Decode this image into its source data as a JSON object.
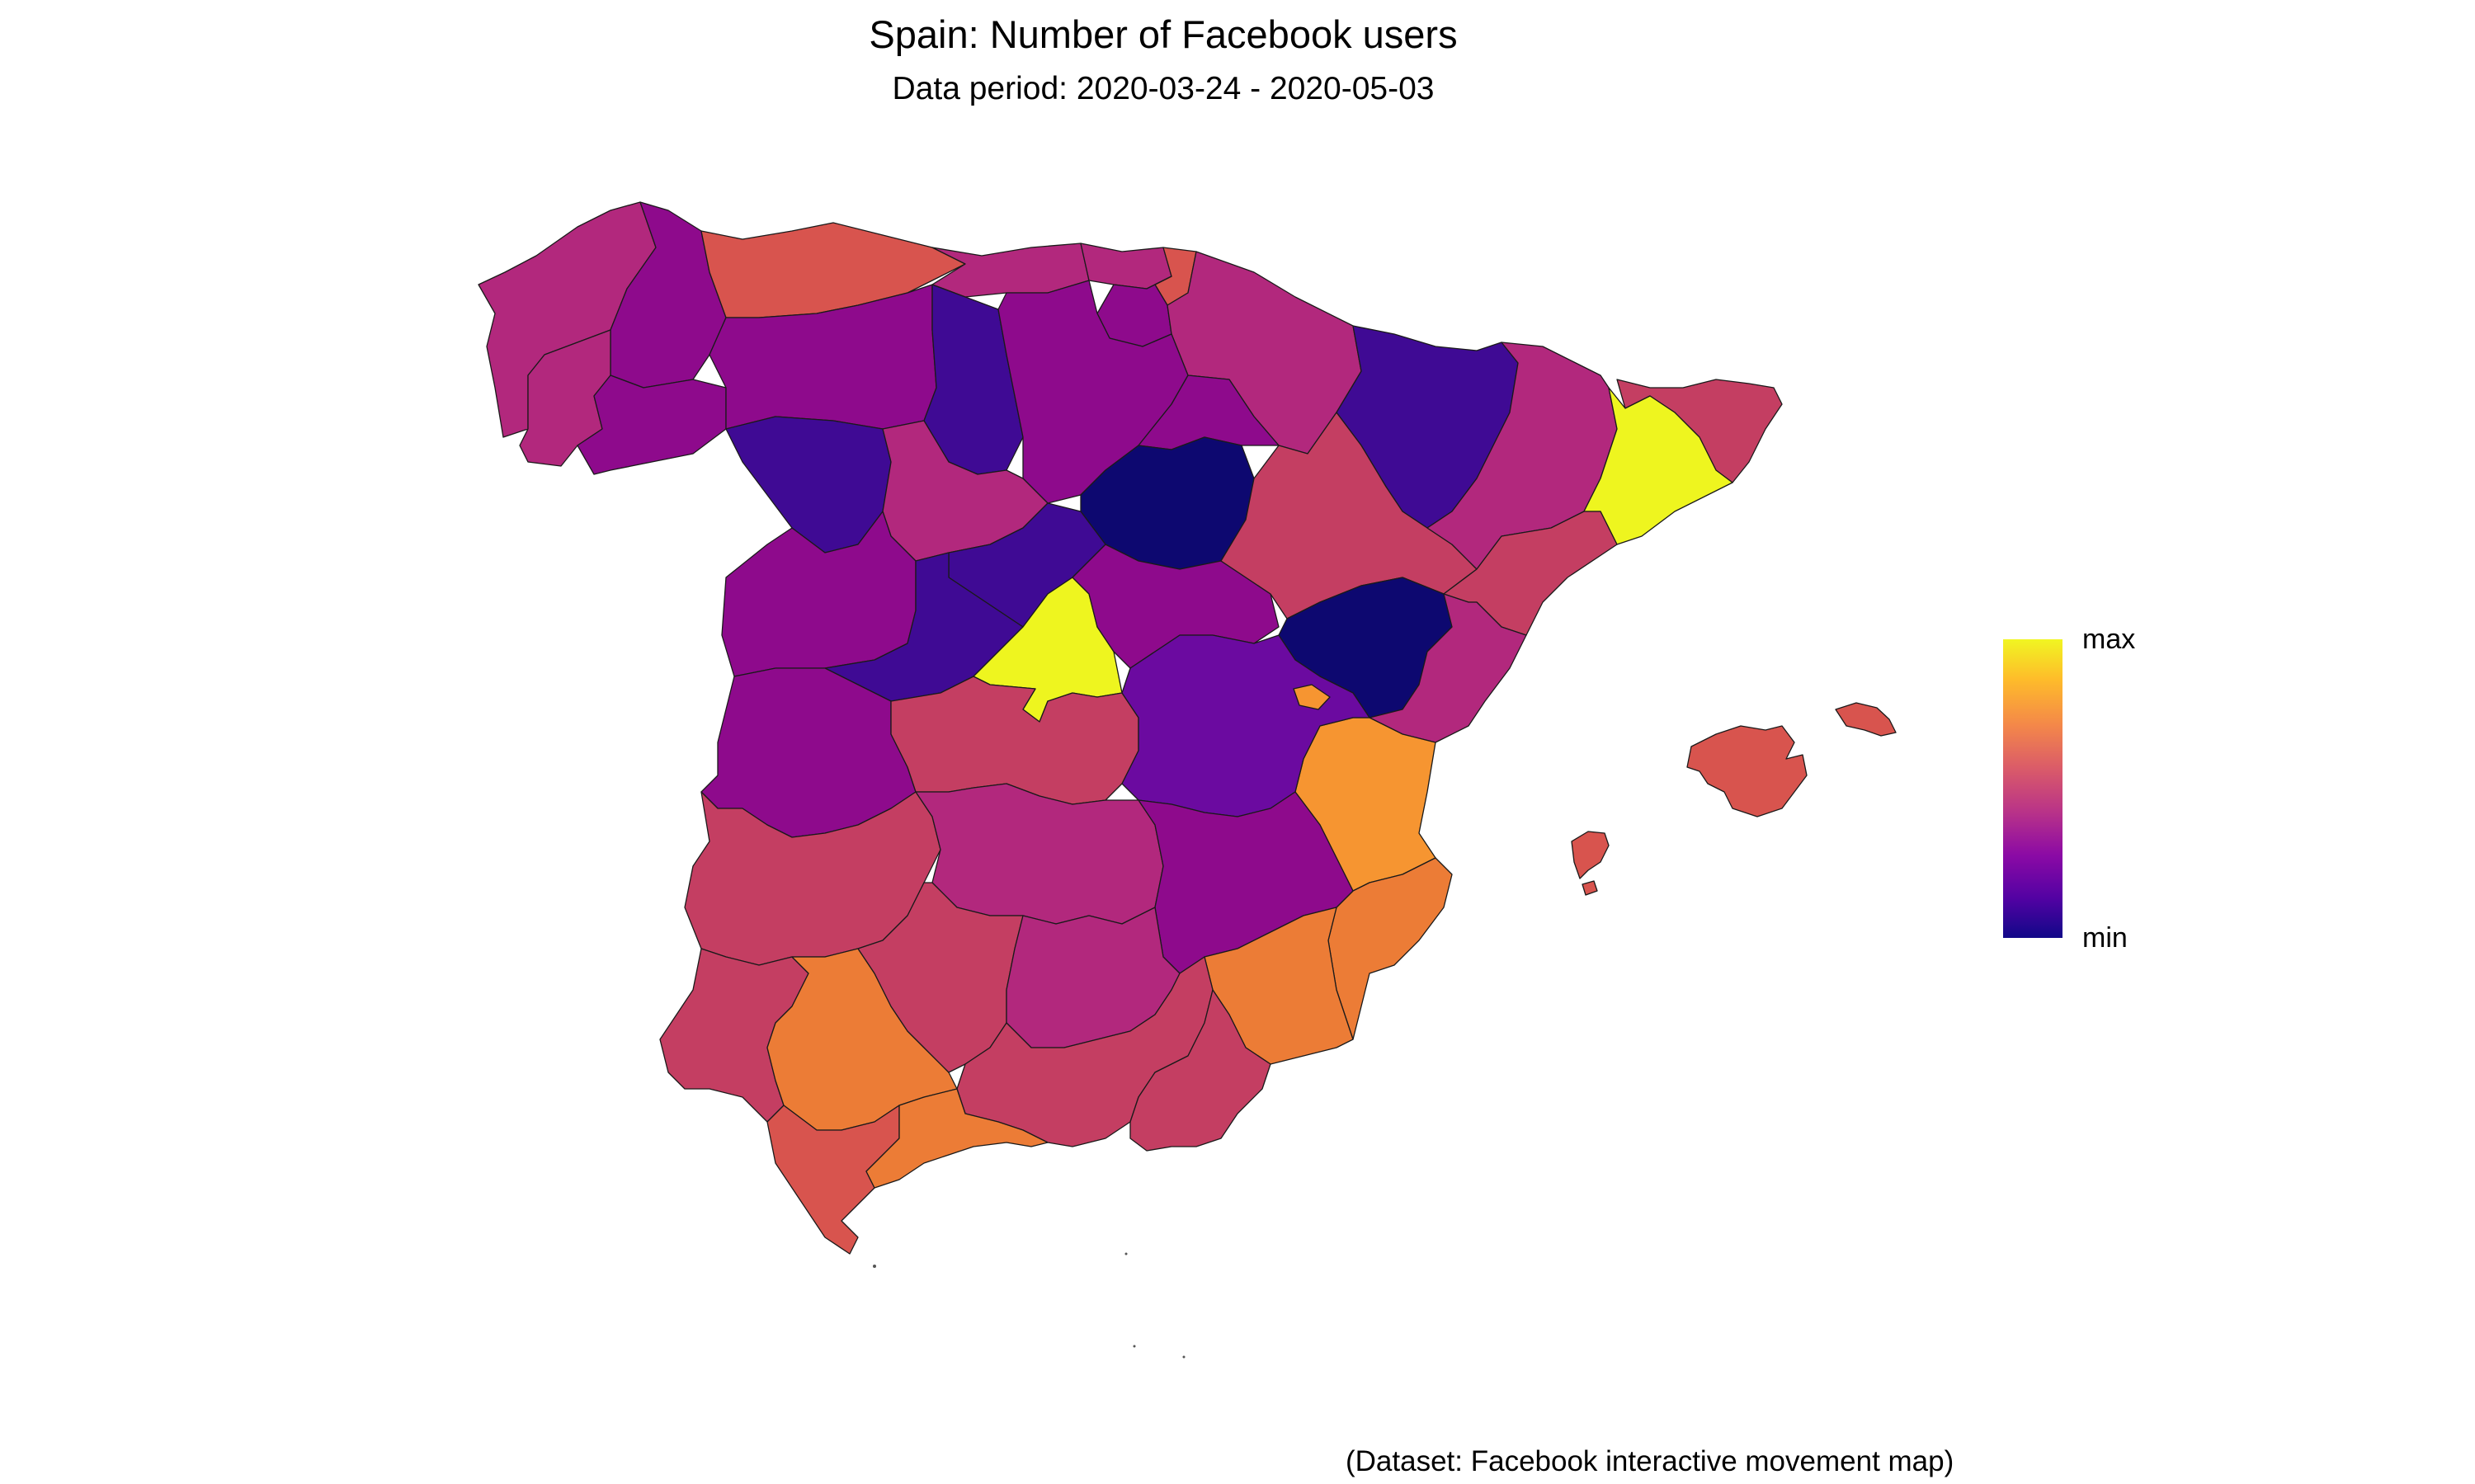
{
  "title": "Spain: Number of Facebook users",
  "subtitle": "Data period: 2020-03-24 - 2020-05-03",
  "caption": "(Dataset: Facebook interactive movement map)",
  "legend": {
    "max_label": "max",
    "min_label": "min",
    "palette": [
      "#0d0887",
      "#5302a3",
      "#8b0aa5",
      "#b83289",
      "#db5c68",
      "#f48849",
      "#febc2a",
      "#f0f921"
    ]
  },
  "colors": {
    "very_low": "#0d0870",
    "low": "#3f0a94",
    "low_mid": "#6b0aa0",
    "mid": "#8e0a8c",
    "mid_high": "#b2287d",
    "high": "#c43e62",
    "higher": "#d8544e",
    "orange": "#ec7c36",
    "bright_orange": "#f69531",
    "max": "#eef51f"
  },
  "regions": [
    {
      "id": "a-coruna",
      "level": "mid_high"
    },
    {
      "id": "lugo",
      "level": "mid"
    },
    {
      "id": "pontevedra",
      "level": "mid_high"
    },
    {
      "id": "ourense",
      "level": "mid"
    },
    {
      "id": "asturias",
      "level": "higher"
    },
    {
      "id": "cantabria",
      "level": "mid_high"
    },
    {
      "id": "bizkaia",
      "level": "mid_high"
    },
    {
      "id": "gipuzkoa",
      "level": "higher"
    },
    {
      "id": "alava",
      "level": "mid"
    },
    {
      "id": "navarra",
      "level": "mid_high"
    },
    {
      "id": "leon",
      "level": "mid"
    },
    {
      "id": "palencia",
      "level": "low"
    },
    {
      "id": "burgos",
      "level": "mid"
    },
    {
      "id": "la-rioja",
      "level": "mid"
    },
    {
      "id": "zamora",
      "level": "low"
    },
    {
      "id": "valladolid",
      "level": "mid_high"
    },
    {
      "id": "soria",
      "level": "very_low"
    },
    {
      "id": "segovia",
      "level": "low"
    },
    {
      "id": "salamanca",
      "level": "mid"
    },
    {
      "id": "avila",
      "level": "low"
    },
    {
      "id": "madrid",
      "level": "max"
    },
    {
      "id": "guadalajara",
      "level": "mid"
    },
    {
      "id": "huesca",
      "level": "low"
    },
    {
      "id": "zaragoza",
      "level": "high"
    },
    {
      "id": "teruel",
      "level": "very_low"
    },
    {
      "id": "lleida",
      "level": "mid_high"
    },
    {
      "id": "girona",
      "level": "high"
    },
    {
      "id": "barcelona",
      "level": "max"
    },
    {
      "id": "tarragona",
      "level": "high"
    },
    {
      "id": "castellon",
      "level": "mid_high"
    },
    {
      "id": "valencia",
      "level": "bright_orange"
    },
    {
      "id": "alicante",
      "level": "orange"
    },
    {
      "id": "caceres",
      "level": "mid"
    },
    {
      "id": "badajoz",
      "level": "high"
    },
    {
      "id": "toledo",
      "level": "high"
    },
    {
      "id": "cuenca",
      "level": "low_mid"
    },
    {
      "id": "ciudad-real",
      "level": "mid_high"
    },
    {
      "id": "albacete",
      "level": "mid"
    },
    {
      "id": "murcia",
      "level": "orange"
    },
    {
      "id": "huelva",
      "level": "high"
    },
    {
      "id": "sevilla",
      "level": "orange"
    },
    {
      "id": "cordoba",
      "level": "high"
    },
    {
      "id": "jaen",
      "level": "mid_high"
    },
    {
      "id": "granada",
      "level": "high"
    },
    {
      "id": "almeria",
      "level": "high"
    },
    {
      "id": "cadiz",
      "level": "higher"
    },
    {
      "id": "malaga",
      "level": "orange"
    },
    {
      "id": "mallorca",
      "level": "higher"
    },
    {
      "id": "menorca",
      "level": "higher"
    },
    {
      "id": "ibiza",
      "level": "higher"
    },
    {
      "id": "rincon-de-ademuz",
      "level": "bright_orange"
    }
  ]
}
